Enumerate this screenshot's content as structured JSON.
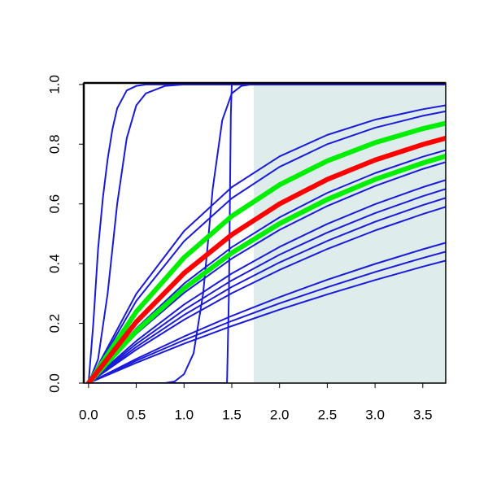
{
  "chart_data": {
    "type": "line",
    "xlim": [
      -0.05,
      3.74
    ],
    "ylim": [
      0,
      1.005
    ],
    "xticks": [
      {
        "value": 0,
        "label": "0.0"
      },
      {
        "value": 0.5,
        "label": "0.5"
      },
      {
        "value": 1,
        "label": "1.0"
      },
      {
        "value": 1.5,
        "label": "1.5"
      },
      {
        "value": 2,
        "label": "2.0"
      },
      {
        "value": 2.5,
        "label": "2.5"
      },
      {
        "value": 3,
        "label": "3.0"
      },
      {
        "value": 3.5,
        "label": "3.5"
      }
    ],
    "yticks": [
      {
        "value": 0,
        "label": "0.0"
      },
      {
        "value": 0.2,
        "label": "0.2"
      },
      {
        "value": 0.4,
        "label": "0.4"
      },
      {
        "value": 0.6,
        "label": "0.6"
      },
      {
        "value": 0.8,
        "label": "0.8"
      },
      {
        "value": 1,
        "label": "1.0"
      }
    ],
    "shade": {
      "from": 1.73,
      "color": "#dfecec"
    },
    "series": [
      {
        "color": "#1a1ad8",
        "lw": 2,
        "x": [
          0,
          0.05,
          0.1,
          0.15,
          0.2,
          0.25,
          0.3,
          0.4,
          0.5,
          0.6,
          3.74
        ],
        "values": [
          0,
          0.2,
          0.45,
          0.62,
          0.75,
          0.85,
          0.92,
          0.98,
          0.995,
          1,
          1
        ]
      },
      {
        "color": "#1a1ad8",
        "lw": 2,
        "x": [
          0,
          0.1,
          0.2,
          0.3,
          0.4,
          0.5,
          0.6,
          0.8,
          1,
          3.74
        ],
        "values": [
          0,
          0.08,
          0.3,
          0.6,
          0.82,
          0.93,
          0.97,
          0.995,
          1,
          1
        ]
      },
      {
        "color": "#1a1ad8",
        "lw": 2,
        "x": [
          0,
          0.8,
          0.9,
          1,
          1.1,
          1.2,
          1.25,
          1.3,
          1.4,
          1.5,
          1.6,
          1.7,
          3.74
        ],
        "values": [
          0,
          0,
          0.005,
          0.03,
          0.1,
          0.3,
          0.47,
          0.65,
          0.88,
          0.97,
          0.995,
          1,
          1
        ]
      },
      {
        "color": "#1a1ad8",
        "lw": 2,
        "x": [
          0,
          1.45,
          1.47,
          1.49,
          1.5,
          3.74
        ],
        "values": [
          0,
          0,
          0.3,
          0.9,
          1,
          1
        ]
      },
      {
        "color": "#1a1ad8",
        "lw": 2,
        "x": [
          0,
          0.5,
          1,
          1.5,
          2,
          2.5,
          3,
          3.5,
          3.74
        ],
        "values": [
          0,
          0.299,
          0.509,
          0.656,
          0.759,
          0.831,
          0.882,
          0.917,
          0.93
        ]
      },
      {
        "color": "#1a1ad8",
        "lw": 2,
        "x": [
          0,
          0.5,
          1,
          1.5,
          2,
          2.5,
          3,
          3.5,
          3.74
        ],
        "values": [
          0,
          0.275,
          0.475,
          0.619,
          0.724,
          0.8,
          0.855,
          0.895,
          0.91
        ]
      },
      {
        "color": "#1a1ad8",
        "lw": 2,
        "x": [
          0,
          0.5,
          1,
          1.5,
          2,
          2.5,
          3,
          3.5,
          3.74
        ],
        "values": [
          0,
          0.183,
          0.333,
          0.455,
          0.555,
          0.637,
          0.703,
          0.758,
          0.78
        ]
      },
      {
        "color": "#1a1ad8",
        "lw": 2,
        "x": [
          0,
          0.5,
          1,
          1.5,
          2,
          2.5,
          3,
          3.5,
          3.74
        ],
        "values": [
          0,
          0.165,
          0.302,
          0.417,
          0.513,
          0.593,
          0.66,
          0.717,
          0.74
        ]
      },
      {
        "color": "#1a1ad8",
        "lw": 2,
        "x": [
          0,
          0.5,
          1,
          1.5,
          2,
          2.5,
          3,
          3.5,
          3.74
        ],
        "values": [
          0,
          0.141,
          0.263,
          0.367,
          0.456,
          0.533,
          0.599,
          0.656,
          0.68
        ]
      },
      {
        "color": "#1a1ad8",
        "lw": 2,
        "x": [
          0,
          0.5,
          1,
          1.5,
          2,
          2.5,
          3,
          3.5,
          3.74
        ],
        "values": [
          0,
          0.131,
          0.245,
          0.344,
          0.43,
          0.504,
          0.569,
          0.626,
          0.65
        ]
      },
      {
        "color": "#1a1ad8",
        "lw": 2,
        "x": [
          0,
          0.5,
          1,
          1.5,
          2,
          2.5,
          3,
          3.5,
          3.74
        ],
        "values": [
          0,
          0.121,
          0.228,
          0.322,
          0.404,
          0.476,
          0.54,
          0.596,
          0.62
        ]
      },
      {
        "color": "#1a1ad8",
        "lw": 2,
        "x": [
          0,
          0.5,
          1,
          1.5,
          2,
          2.5,
          3,
          3.5,
          3.74
        ],
        "values": [
          0,
          0.112,
          0.212,
          0.301,
          0.379,
          0.449,
          0.511,
          0.566,
          0.59
        ]
      },
      {
        "color": "#1a1ad8",
        "lw": 2,
        "x": [
          0,
          0.5,
          1,
          1.5,
          2,
          2.5,
          3,
          3.5,
          3.74
        ],
        "values": [
          0,
          0.081,
          0.156,
          0.225,
          0.288,
          0.346,
          0.399,
          0.448,
          0.47
        ]
      },
      {
        "color": "#1a1ad8",
        "lw": 2,
        "x": [
          0,
          0.5,
          1,
          1.5,
          2,
          2.5,
          3,
          3.5,
          3.74
        ],
        "values": [
          0,
          0.075,
          0.144,
          0.208,
          0.267,
          0.321,
          0.372,
          0.419,
          0.44
        ]
      },
      {
        "color": "#1a1ad8",
        "lw": 2,
        "x": [
          0,
          0.5,
          1,
          1.5,
          2,
          2.5,
          3,
          3.5,
          3.74
        ],
        "values": [
          0,
          0.068,
          0.132,
          0.191,
          0.246,
          0.297,
          0.345,
          0.39,
          0.41
        ]
      },
      {
        "color": "#00ee00",
        "lw": 6,
        "x": [
          0,
          0.5,
          1,
          1.5,
          2,
          2.5,
          3,
          3.5,
          3.74
        ],
        "values": [
          0,
          0.239,
          0.42,
          0.559,
          0.664,
          0.744,
          0.805,
          0.852,
          0.87
        ]
      },
      {
        "color": "#00ee00",
        "lw": 6,
        "x": [
          0,
          0.5,
          1,
          1.5,
          2,
          2.5,
          3,
          3.5,
          3.74
        ],
        "values": [
          0,
          0.174,
          0.317,
          0.436,
          0.534,
          0.615,
          0.682,
          0.737,
          0.76
        ]
      },
      {
        "color": "#ff0000",
        "lw": 6,
        "x": [
          0,
          0.5,
          1,
          1.5,
          2,
          2.5,
          3,
          3.5,
          3.74
        ],
        "values": [
          0,
          0.205,
          0.368,
          0.497,
          0.6,
          0.682,
          0.747,
          0.799,
          0.82
        ]
      }
    ]
  }
}
